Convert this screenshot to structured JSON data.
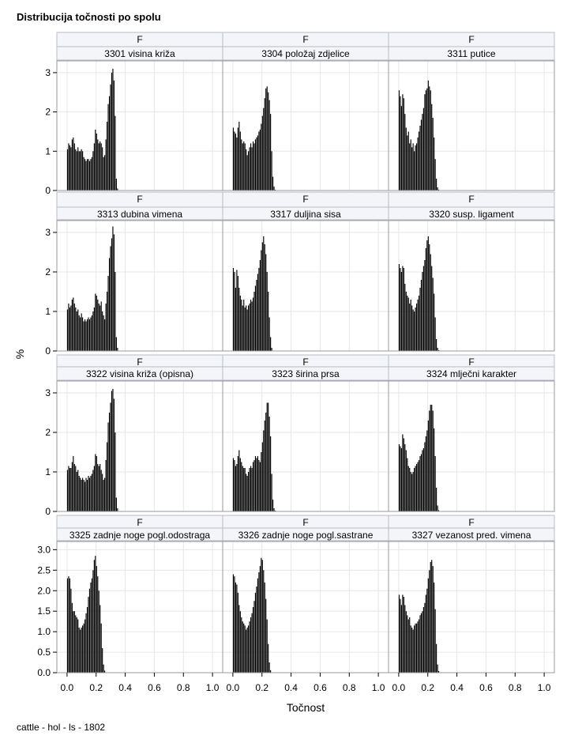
{
  "title": "Distribucija točnosti po spolu",
  "footer": "cattle - hol - ls - 1802",
  "chart_data": {
    "type": "bar",
    "title": "Distribucija točnosti po spolu",
    "xlabel": "Točnost",
    "ylabel": "%",
    "panel_row_label": "F",
    "grid": true,
    "x": [
      0.0,
      0.008,
      0.016,
      0.024,
      0.032,
      0.04,
      0.048,
      0.056,
      0.064,
      0.072,
      0.08,
      0.088,
      0.096,
      0.104,
      0.112,
      0.12,
      0.128,
      0.136,
      0.144,
      0.152,
      0.16,
      0.168,
      0.176,
      0.184,
      0.192,
      0.2,
      0.208,
      0.216,
      0.224,
      0.232,
      0.24,
      0.248,
      0.256,
      0.264,
      0.272,
      0.28,
      0.288,
      0.296,
      0.304,
      0.312,
      0.32,
      0.328,
      0.336,
      0.344,
      0.352,
      0.36,
      0.368,
      0.376,
      0.384,
      0.392,
      0.4,
      0.408,
      0.416,
      0.424,
      0.432,
      0.44,
      0.448,
      0.456,
      0.464,
      0.472
    ],
    "rows": [
      {
        "ylim": [
          0,
          3.3
        ],
        "yticks": [
          "0",
          "1",
          "2",
          "3"
        ],
        "show_xaxis": false
      },
      {
        "ylim": [
          0,
          3.3
        ],
        "yticks": [
          "0",
          "1",
          "2",
          "3"
        ],
        "show_xaxis": false
      },
      {
        "ylim": [
          0,
          3.3
        ],
        "yticks": [
          "0",
          "1",
          "2",
          "3"
        ],
        "show_xaxis": false
      },
      {
        "ylim": [
          0,
          3.2
        ],
        "yticks": [
          "0.0",
          "0.5",
          "1.0",
          "1.5",
          "2.0",
          "2.5",
          "3.0"
        ],
        "show_xaxis": true
      }
    ],
    "xlim": [
      -0.07,
      1.07
    ],
    "xticks": [
      "0.0",
      "0.2",
      "0.4",
      "0.6",
      "0.8",
      "1.0"
    ],
    "panels": [
      {
        "name": "3301 visina križa",
        "values": [
          1.05,
          1.2,
          1.15,
          1.1,
          1.3,
          1.35,
          1.2,
          1.05,
          1.0,
          1.1,
          1.0,
          1.0,
          1.05,
          1.0,
          0.85,
          0.8,
          0.75,
          0.8,
          0.8,
          0.75,
          0.8,
          0.85,
          1.0,
          1.2,
          1.55,
          1.45,
          1.3,
          1.2,
          1.25,
          1.2,
          1.1,
          0.85,
          0.9,
          1.3,
          1.75,
          2.2,
          2.4,
          2.7,
          3.0,
          3.1,
          2.8,
          1.9,
          0.3,
          0.05,
          0,
          0,
          0,
          0,
          0,
          0,
          0,
          0,
          0,
          0,
          0,
          0,
          0,
          0,
          0,
          0
        ]
      },
      {
        "name": "3304 položaj zdjelice",
        "values": [
          1.6,
          1.5,
          1.45,
          1.35,
          1.6,
          1.75,
          1.5,
          1.3,
          1.2,
          1.25,
          1.2,
          1.05,
          0.9,
          1.0,
          1.1,
          1.2,
          1.1,
          1.25,
          1.2,
          1.3,
          1.35,
          1.4,
          1.5,
          1.55,
          1.7,
          1.9,
          2.1,
          2.35,
          2.6,
          2.65,
          2.5,
          2.3,
          1.95,
          1.0,
          0.35,
          0.1,
          0.02,
          0,
          0,
          0,
          0,
          0,
          0,
          0,
          0,
          0,
          0,
          0,
          0,
          0,
          0,
          0,
          0,
          0,
          0,
          0,
          0,
          0,
          0,
          0
        ]
      },
      {
        "name": "3311 putice",
        "values": [
          2.55,
          2.4,
          2.15,
          2.45,
          2.35,
          1.95,
          1.6,
          1.4,
          1.5,
          1.2,
          1.3,
          1.1,
          1.2,
          1.0,
          1.15,
          1.2,
          1.35,
          1.5,
          1.65,
          1.8,
          1.95,
          2.1,
          2.45,
          2.55,
          2.6,
          2.8,
          2.65,
          2.55,
          2.2,
          1.85,
          1.35,
          0.8,
          0.3,
          0.08,
          0.02,
          0,
          0,
          0,
          0,
          0,
          0,
          0,
          0,
          0,
          0,
          0,
          0,
          0,
          0,
          0,
          0,
          0,
          0,
          0,
          0,
          0,
          0,
          0,
          0,
          0
        ]
      },
      {
        "name": "3313 dubina vimena",
        "values": [
          1.05,
          1.2,
          1.1,
          1.15,
          1.3,
          1.35,
          1.2,
          1.1,
          1.0,
          1.05,
          0.9,
          0.85,
          0.95,
          0.85,
          0.75,
          0.8,
          0.75,
          0.8,
          0.85,
          0.8,
          0.85,
          0.9,
          1.0,
          1.1,
          1.45,
          1.4,
          1.3,
          1.2,
          1.15,
          1.25,
          1.0,
          0.9,
          0.8,
          1.2,
          1.5,
          1.9,
          2.35,
          2.65,
          2.85,
          3.15,
          2.95,
          2.0,
          0.35,
          0.08,
          0,
          0,
          0,
          0,
          0,
          0,
          0,
          0,
          0,
          0,
          0,
          0,
          0,
          0,
          0,
          0
        ]
      },
      {
        "name": "3317 duljina sisa",
        "values": [
          2.1,
          2.0,
          1.6,
          2.05,
          1.9,
          1.6,
          1.4,
          1.3,
          1.15,
          1.3,
          1.1,
          1.15,
          1.05,
          1.15,
          1.2,
          1.3,
          1.25,
          1.35,
          1.5,
          1.65,
          1.8,
          1.95,
          2.1,
          2.3,
          2.55,
          2.75,
          2.9,
          2.7,
          2.45,
          2.0,
          1.5,
          0.85,
          0.35,
          0.08,
          0,
          0,
          0,
          0,
          0,
          0,
          0,
          0,
          0,
          0,
          0,
          0,
          0,
          0,
          0,
          0,
          0,
          0,
          0,
          0,
          0,
          0,
          0,
          0,
          0,
          0
        ]
      },
      {
        "name": "3320 susp. ligament",
        "values": [
          2.2,
          2.1,
          2.0,
          2.15,
          2.1,
          1.7,
          1.5,
          1.4,
          1.35,
          1.2,
          1.3,
          1.15,
          1.05,
          1.0,
          1.1,
          1.2,
          1.3,
          1.4,
          1.6,
          1.8,
          2.0,
          2.15,
          2.3,
          2.6,
          2.8,
          2.9,
          2.7,
          2.45,
          2.15,
          1.85,
          1.45,
          0.85,
          0.3,
          0.08,
          0.02,
          0,
          0,
          0,
          0,
          0,
          0,
          0,
          0,
          0,
          0,
          0,
          0,
          0,
          0,
          0,
          0,
          0,
          0,
          0,
          0,
          0,
          0,
          0,
          0,
          0
        ]
      },
      {
        "name": "3322 visina križa (opisna)",
        "values": [
          1.05,
          1.15,
          1.1,
          1.1,
          1.25,
          1.4,
          1.2,
          1.15,
          1.0,
          1.05,
          0.9,
          0.85,
          0.8,
          0.85,
          0.8,
          0.75,
          0.85,
          0.8,
          0.9,
          0.85,
          0.9,
          0.95,
          1.05,
          1.15,
          1.45,
          1.4,
          1.2,
          1.15,
          1.2,
          1.05,
          0.95,
          0.8,
          0.85,
          1.3,
          1.75,
          2.25,
          2.5,
          2.75,
          3.05,
          3.1,
          2.85,
          2.0,
          0.35,
          0.08,
          0,
          0,
          0,
          0,
          0,
          0,
          0,
          0,
          0,
          0,
          0,
          0,
          0,
          0,
          0,
          0
        ]
      },
      {
        "name": "3323 širina prsa",
        "values": [
          1.35,
          1.3,
          1.15,
          1.2,
          1.4,
          1.55,
          1.35,
          1.25,
          1.15,
          1.1,
          1.1,
          0.95,
          0.9,
          1.0,
          1.1,
          1.15,
          1.1,
          1.25,
          1.3,
          1.4,
          1.35,
          1.4,
          1.3,
          1.25,
          1.5,
          1.75,
          2.05,
          2.3,
          2.5,
          2.75,
          2.75,
          2.4,
          1.9,
          0.95,
          0.3,
          0.08,
          0.02,
          0,
          0,
          0,
          0,
          0,
          0,
          0,
          0,
          0,
          0,
          0,
          0,
          0,
          0,
          0,
          0,
          0,
          0,
          0,
          0,
          0,
          0,
          0
        ]
      },
      {
        "name": "3324 mlječni karakter",
        "values": [
          1.7,
          1.65,
          1.6,
          1.95,
          1.85,
          1.7,
          1.55,
          1.35,
          1.15,
          1.1,
          1.0,
          0.95,
          1.0,
          1.1,
          1.15,
          1.2,
          1.25,
          1.3,
          1.4,
          1.45,
          1.55,
          1.6,
          1.75,
          1.9,
          2.05,
          2.3,
          2.55,
          2.7,
          2.7,
          2.55,
          2.1,
          1.4,
          0.6,
          0.15,
          0.03,
          0,
          0,
          0,
          0,
          0,
          0,
          0,
          0,
          0,
          0,
          0,
          0,
          0,
          0,
          0,
          0,
          0,
          0,
          0,
          0,
          0,
          0,
          0,
          0,
          0
        ]
      },
      {
        "name": "3325 zadnje noge pogl.odostraga",
        "values": [
          2.3,
          2.35,
          2.3,
          2.05,
          1.7,
          1.5,
          1.5,
          1.4,
          1.35,
          1.3,
          1.1,
          1.05,
          1.1,
          1.15,
          1.2,
          1.3,
          1.45,
          1.6,
          1.85,
          2.05,
          2.2,
          2.3,
          2.5,
          2.75,
          2.85,
          2.6,
          2.35,
          2.0,
          1.65,
          1.2,
          0.6,
          0.2,
          0.05,
          0,
          0,
          0,
          0,
          0,
          0,
          0,
          0,
          0,
          0,
          0,
          0,
          0,
          0,
          0,
          0,
          0,
          0,
          0,
          0,
          0,
          0,
          0,
          0,
          0,
          0,
          0
        ]
      },
      {
        "name": "3326 zadnje noge pogl.sastrane",
        "values": [
          2.4,
          2.35,
          2.2,
          2.15,
          1.95,
          1.65,
          1.5,
          1.35,
          1.25,
          1.2,
          1.15,
          1.05,
          1.1,
          1.15,
          1.25,
          1.35,
          1.45,
          1.6,
          1.75,
          1.95,
          2.1,
          2.3,
          2.45,
          2.6,
          2.8,
          2.75,
          2.5,
          2.2,
          1.8,
          1.3,
          0.7,
          0.25,
          0.06,
          0,
          0,
          0,
          0,
          0,
          0,
          0,
          0,
          0,
          0,
          0,
          0,
          0,
          0,
          0,
          0,
          0,
          0,
          0,
          0,
          0,
          0,
          0,
          0,
          0,
          0,
          0
        ]
      },
      {
        "name": "3327 vezanost pred. vimena",
        "values": [
          1.9,
          1.8,
          1.65,
          1.9,
          1.85,
          1.65,
          1.5,
          1.4,
          1.3,
          1.35,
          1.15,
          1.1,
          1.05,
          1.15,
          1.2,
          1.2,
          1.25,
          1.3,
          1.4,
          1.45,
          1.5,
          1.6,
          1.7,
          1.9,
          2.05,
          2.3,
          2.5,
          2.7,
          2.75,
          2.6,
          2.2,
          1.55,
          0.7,
          0.2,
          0.04,
          0,
          0,
          0,
          0,
          0,
          0,
          0,
          0,
          0,
          0,
          0,
          0,
          0,
          0,
          0,
          0,
          0,
          0,
          0,
          0,
          0,
          0,
          0,
          0,
          0
        ]
      }
    ]
  }
}
